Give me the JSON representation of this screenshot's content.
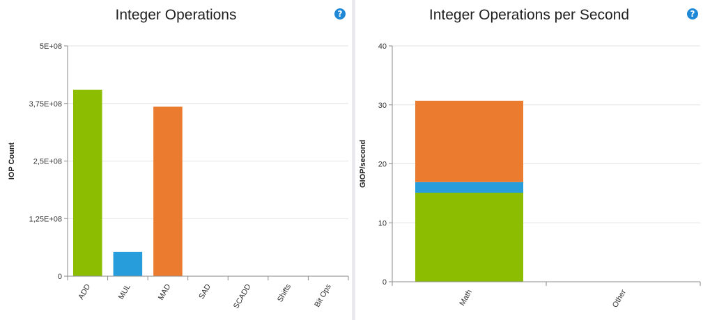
{
  "colors": {
    "green": "#8cbd00",
    "blue": "#279edb",
    "orange": "#eb7c2f",
    "help": "#1e88d6",
    "grid": "#e3e3e3",
    "axis": "#8a8a8a"
  },
  "left_panel": {
    "title": "Integer Operations",
    "help_icon": "?"
  },
  "right_panel": {
    "title": "Integer Operations per Second",
    "help_icon": "?"
  },
  "chart_data": [
    {
      "type": "bar",
      "title": "Integer Operations",
      "xlabel": "",
      "ylabel": "IOP Count",
      "categories": [
        "ADD",
        "MUL",
        "MAD",
        "SAD",
        "SCADD",
        "Shifts",
        "Bit Ops"
      ],
      "values": [
        405000000,
        53000000,
        368000000,
        0,
        0,
        0,
        0
      ],
      "bar_colors": [
        "#8cbd00",
        "#279edb",
        "#eb7c2f",
        "#8cbd00",
        "#8cbd00",
        "#8cbd00",
        "#8cbd00"
      ],
      "ylim": [
        0,
        500000000
      ],
      "yticks": [
        0,
        125000000,
        250000000,
        375000000,
        500000000
      ],
      "ytick_labels": [
        "0",
        "1,25E+08",
        "2,5E+08",
        "3,75E+08",
        "5E+08"
      ],
      "grid": true,
      "legend": "none"
    },
    {
      "type": "bar",
      "stacked": true,
      "title": "Integer Operations per Second",
      "xlabel": "",
      "ylabel": "GIOP/second",
      "categories": [
        "Math",
        "Other"
      ],
      "series": [
        {
          "color": "#8cbd00",
          "values": [
            15.1,
            0
          ]
        },
        {
          "color": "#279edb",
          "values": [
            1.8,
            0
          ]
        },
        {
          "color": "#eb7c2f",
          "values": [
            13.8,
            0
          ]
        }
      ],
      "ylim": [
        0,
        40
      ],
      "yticks": [
        0,
        10,
        20,
        30,
        40
      ],
      "ytick_labels": [
        "0",
        "10",
        "20",
        "30",
        "40"
      ],
      "grid": true,
      "legend": "none"
    }
  ]
}
